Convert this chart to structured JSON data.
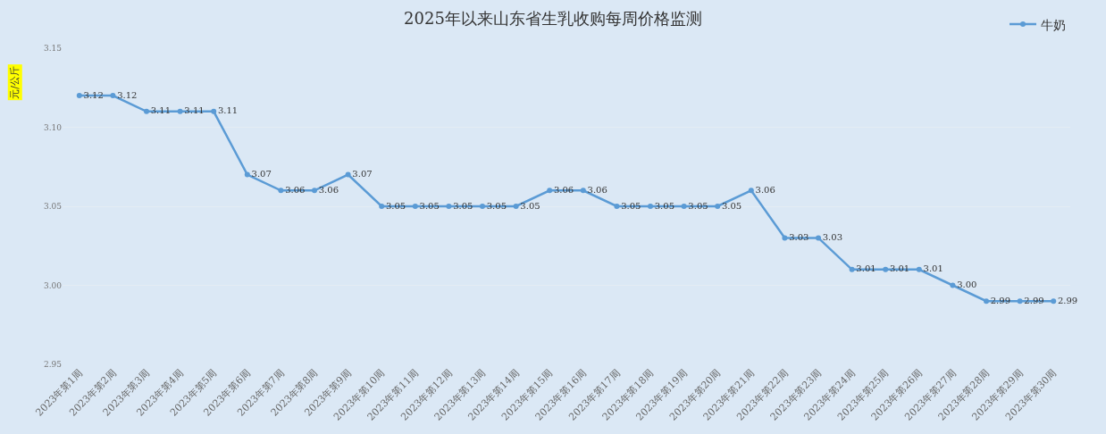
{
  "chart_data": {
    "type": "line",
    "title": "2025年以来山东省生乳收购每周价格监测",
    "ylabel": "元/公斤",
    "categories": [
      "2023年第1周",
      "2023年第2周",
      "2023年第3周",
      "2023年第4周",
      "2023年第5周",
      "2023年第6周",
      "2023年第7周",
      "2023年第8周",
      "2023年第9周",
      "2023年第10周",
      "2023年第11周",
      "2023年第12周",
      "2023年第13周",
      "2023年第14周",
      "2023年第15周",
      "2023年第16周",
      "2023年第17周",
      "2023年第18周",
      "2023年第19周",
      "2023年第20周",
      "2023年第21周",
      "2023年第22周",
      "2023年第23周",
      "2023年第24周",
      "2023年第25周",
      "2023年第26周",
      "2023年第27周",
      "2023年第28周",
      "2023年第29周",
      "2023年第30周"
    ],
    "series": [
      {
        "name": "牛奶",
        "color": "#5b9bd5",
        "values": [
          3.12,
          3.12,
          3.11,
          3.11,
          3.11,
          3.07,
          3.06,
          3.06,
          3.07,
          3.05,
          3.05,
          3.05,
          3.05,
          3.05,
          3.06,
          3.06,
          3.05,
          3.05,
          3.05,
          3.05,
          3.06,
          3.03,
          3.03,
          3.01,
          3.01,
          3.01,
          3.0,
          2.99,
          2.99,
          2.99
        ],
        "value_labels": [
          "3.12",
          "3.12",
          "3.11",
          "3.11",
          "3.11",
          "3.07",
          "3.06",
          "3.06",
          "3.07",
          "3.05",
          "3.05",
          "3.05",
          "3.05",
          "3.05",
          "3.06",
          "3.06",
          "3.05",
          "3.05",
          "3.05",
          "3.05",
          "3.06",
          "3.03",
          "3.03",
          "3.01",
          "3.01",
          "3.01",
          "3.00",
          "2.99",
          "2.99",
          "2.99"
        ]
      }
    ],
    "ylim": [
      2.95,
      3.15
    ],
    "yticks": [
      {
        "value": 2.95,
        "label": "2.95"
      },
      {
        "value": 3.0,
        "label": "3.00"
      },
      {
        "value": 3.05,
        "label": "3.05"
      },
      {
        "value": 3.1,
        "label": "3.10"
      },
      {
        "value": 3.15,
        "label": "3.15"
      }
    ],
    "grid": "y",
    "legend": "top right",
    "marker": "circle",
    "line_style": "solid"
  }
}
